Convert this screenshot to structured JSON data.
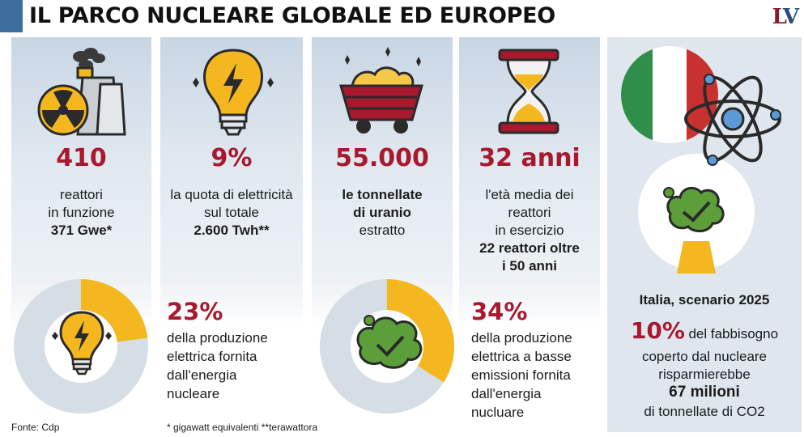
{
  "header": {
    "title": "IL PARCO NUCLEARE GLOBALE ED EUROPEO",
    "logo_l": "L",
    "logo_v": "V"
  },
  "col1": {
    "big": "410",
    "line1": "reattori",
    "line2": "in funzione",
    "line3": "371 Gwe*"
  },
  "col2": {
    "big": "9%",
    "line1": "la quota di elettricità",
    "line2": "sul totale",
    "line3": "2.600 Twh**"
  },
  "col3": {
    "big": "55.000",
    "line1": "le tonnellate",
    "line2": "di uranio",
    "line3": "estratto"
  },
  "col4": {
    "big": "32 anni",
    "line1": "l'età media dei",
    "line2": "reattori",
    "line3": "in esercizio",
    "line4": "22 reattori oltre",
    "line5": "i 50 anni"
  },
  "donut1": {
    "pct": "23%",
    "value_fraction": 0.23,
    "d1": "della produzione",
    "d2": "elettrica fornita",
    "d3": "dall'energia",
    "d4": "nucleare"
  },
  "donut2": {
    "pct": "34%",
    "value_fraction": 0.34,
    "d1": "della produzione",
    "d2": "elettrica a basse",
    "d3": "emissioni fornita",
    "d4": "dall'energia",
    "d5": "nucluare"
  },
  "italy": {
    "heading": "Italia, scenario 2025",
    "pct": "10%",
    "t1": "del fabbisogno",
    "t2": "coperto dal nucleare",
    "t3": "risparmierebbe",
    "t4": "67 milioni",
    "t5": "di tonnellate di CO2"
  },
  "footer": {
    "source": "Fonte: Cdp",
    "notes": "* gigawatt equivalenti **terawattora"
  },
  "colors": {
    "accent_red": "#a8192e",
    "accent_yellow": "#f5b71f",
    "donut_grey": "#d5dde5",
    "title_blue": "#3b6e9a"
  },
  "icons": [
    "nuclear-plant-icon",
    "lightbulb-icon",
    "uranium-cart-icon",
    "hourglass-icon",
    "atom-icon",
    "italian-flag-icon",
    "co2-cloud-icon"
  ]
}
